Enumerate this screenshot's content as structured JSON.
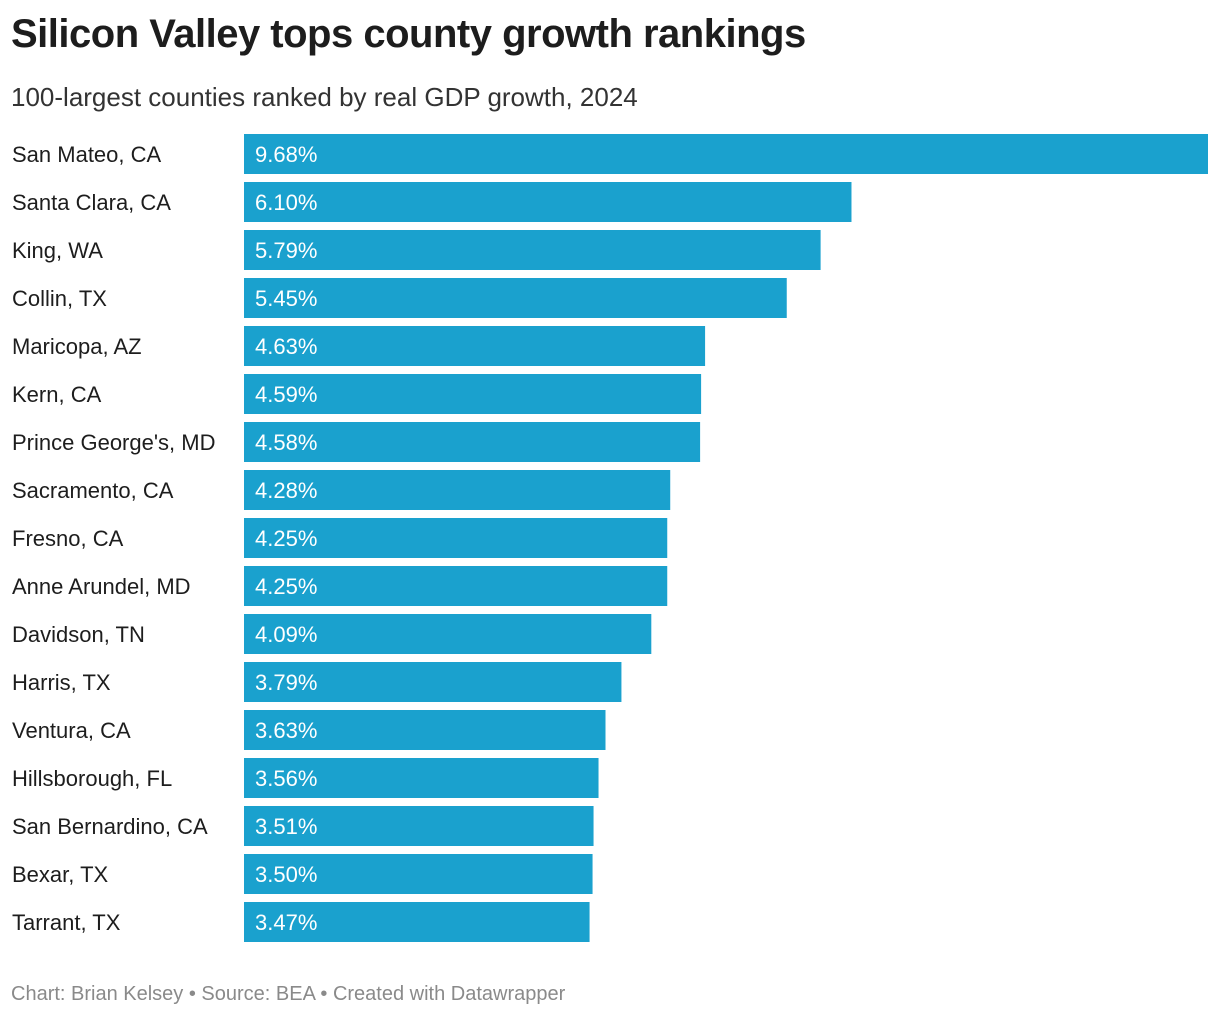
{
  "chart_data": {
    "type": "bar",
    "orientation": "horizontal",
    "title": "Silicon Valley tops county growth rankings",
    "subtitle": "100-largest counties ranked by real GDP growth, 2024",
    "categories": [
      "San Mateo, CA",
      "Santa Clara, CA",
      "King, WA",
      "Collin, TX",
      "Maricopa, AZ",
      "Kern, CA",
      "Prince George's, MD",
      "Sacramento, CA",
      "Fresno, CA",
      "Anne Arundel, MD",
      "Davidson, TN",
      "Harris, TX",
      "Ventura, CA",
      "Hillsborough, FL",
      "San Bernardino, CA",
      "Bexar, TX",
      "Tarrant, TX"
    ],
    "values": [
      9.68,
      6.1,
      5.79,
      5.45,
      4.63,
      4.59,
      4.58,
      4.28,
      4.25,
      4.25,
      4.09,
      3.79,
      3.63,
      3.56,
      3.51,
      3.5,
      3.47
    ],
    "value_labels": [
      "9.68%",
      "6.10%",
      "5.79%",
      "5.45%",
      "4.63%",
      "4.59%",
      "4.58%",
      "4.28%",
      "4.25%",
      "4.25%",
      "4.09%",
      "3.79%",
      "3.63%",
      "3.56%",
      "3.51%",
      "3.50%",
      "3.47%"
    ],
    "xlim": [
      0,
      9.68
    ],
    "grid": false,
    "bar_color": "#1aa1ce",
    "label_color": "#ffffff"
  },
  "footer": {
    "chart_credit": "Chart: Brian Kelsey",
    "separator": " • ",
    "source": "Source: BEA",
    "created_with": "Created with Datawrapper"
  }
}
